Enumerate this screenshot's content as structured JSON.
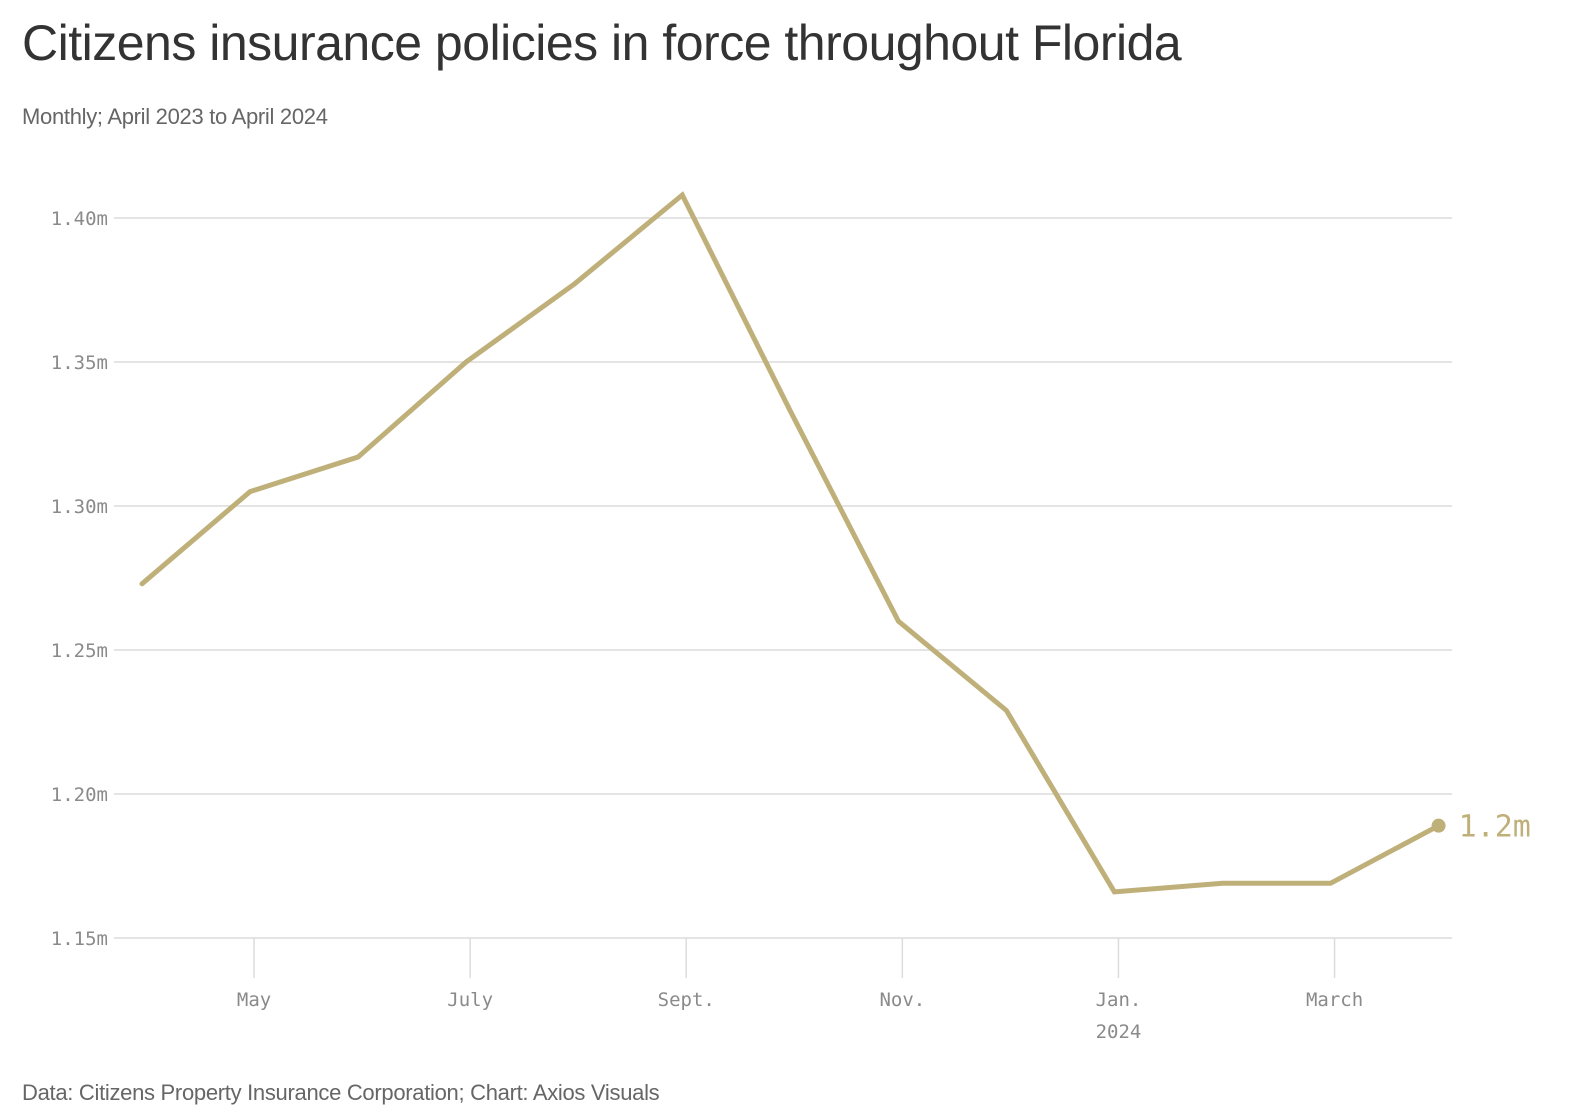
{
  "header": {
    "title": "Citizens insurance policies in force throughout Florida",
    "subtitle": "Monthly; April 2023 to April 2024"
  },
  "footer": {
    "source": "Data: Citizens Property Insurance Corporation; Chart: Axios Visuals"
  },
  "chart_data": {
    "type": "line",
    "title": "Citizens insurance policies in force throughout Florida",
    "subtitle": "Monthly; April 2023 to April 2024",
    "xlabel": "",
    "ylabel": "",
    "x": [
      "Apr 2023",
      "May 2023",
      "Jun 2023",
      "Jul 2023",
      "Aug 2023",
      "Sep 2023",
      "Oct 2023",
      "Nov 2023",
      "Dec 2023",
      "Jan 2024",
      "Feb 2024",
      "Mar 2024",
      "Apr 2024"
    ],
    "series": [
      {
        "name": "Policies in force (millions)",
        "color": "#bfb07a",
        "values": [
          1.273,
          1.305,
          1.317,
          1.35,
          1.377,
          1.408,
          1.333,
          1.26,
          1.229,
          1.166,
          1.169,
          1.169,
          1.189
        ]
      }
    ],
    "ylim": [
      1.15,
      1.4
    ],
    "yticks": [
      1.15,
      1.2,
      1.25,
      1.3,
      1.35,
      1.4
    ],
    "ytick_labels": [
      "1.15m",
      "1.20m",
      "1.25m",
      "1.30m",
      "1.35m",
      "1.40m"
    ],
    "xticks": [
      {
        "label": "May",
        "month_index": 1,
        "sublabel": ""
      },
      {
        "label": "July",
        "month_index": 3,
        "sublabel": ""
      },
      {
        "label": "Sept.",
        "month_index": 5,
        "sublabel": ""
      },
      {
        "label": "Nov.",
        "month_index": 7,
        "sublabel": ""
      },
      {
        "label": "Jan.",
        "month_index": 9,
        "sublabel": "2024"
      },
      {
        "label": "March",
        "month_index": 11,
        "sublabel": ""
      }
    ],
    "end_annotation": "1.2m",
    "grid": true,
    "legend": "none"
  }
}
